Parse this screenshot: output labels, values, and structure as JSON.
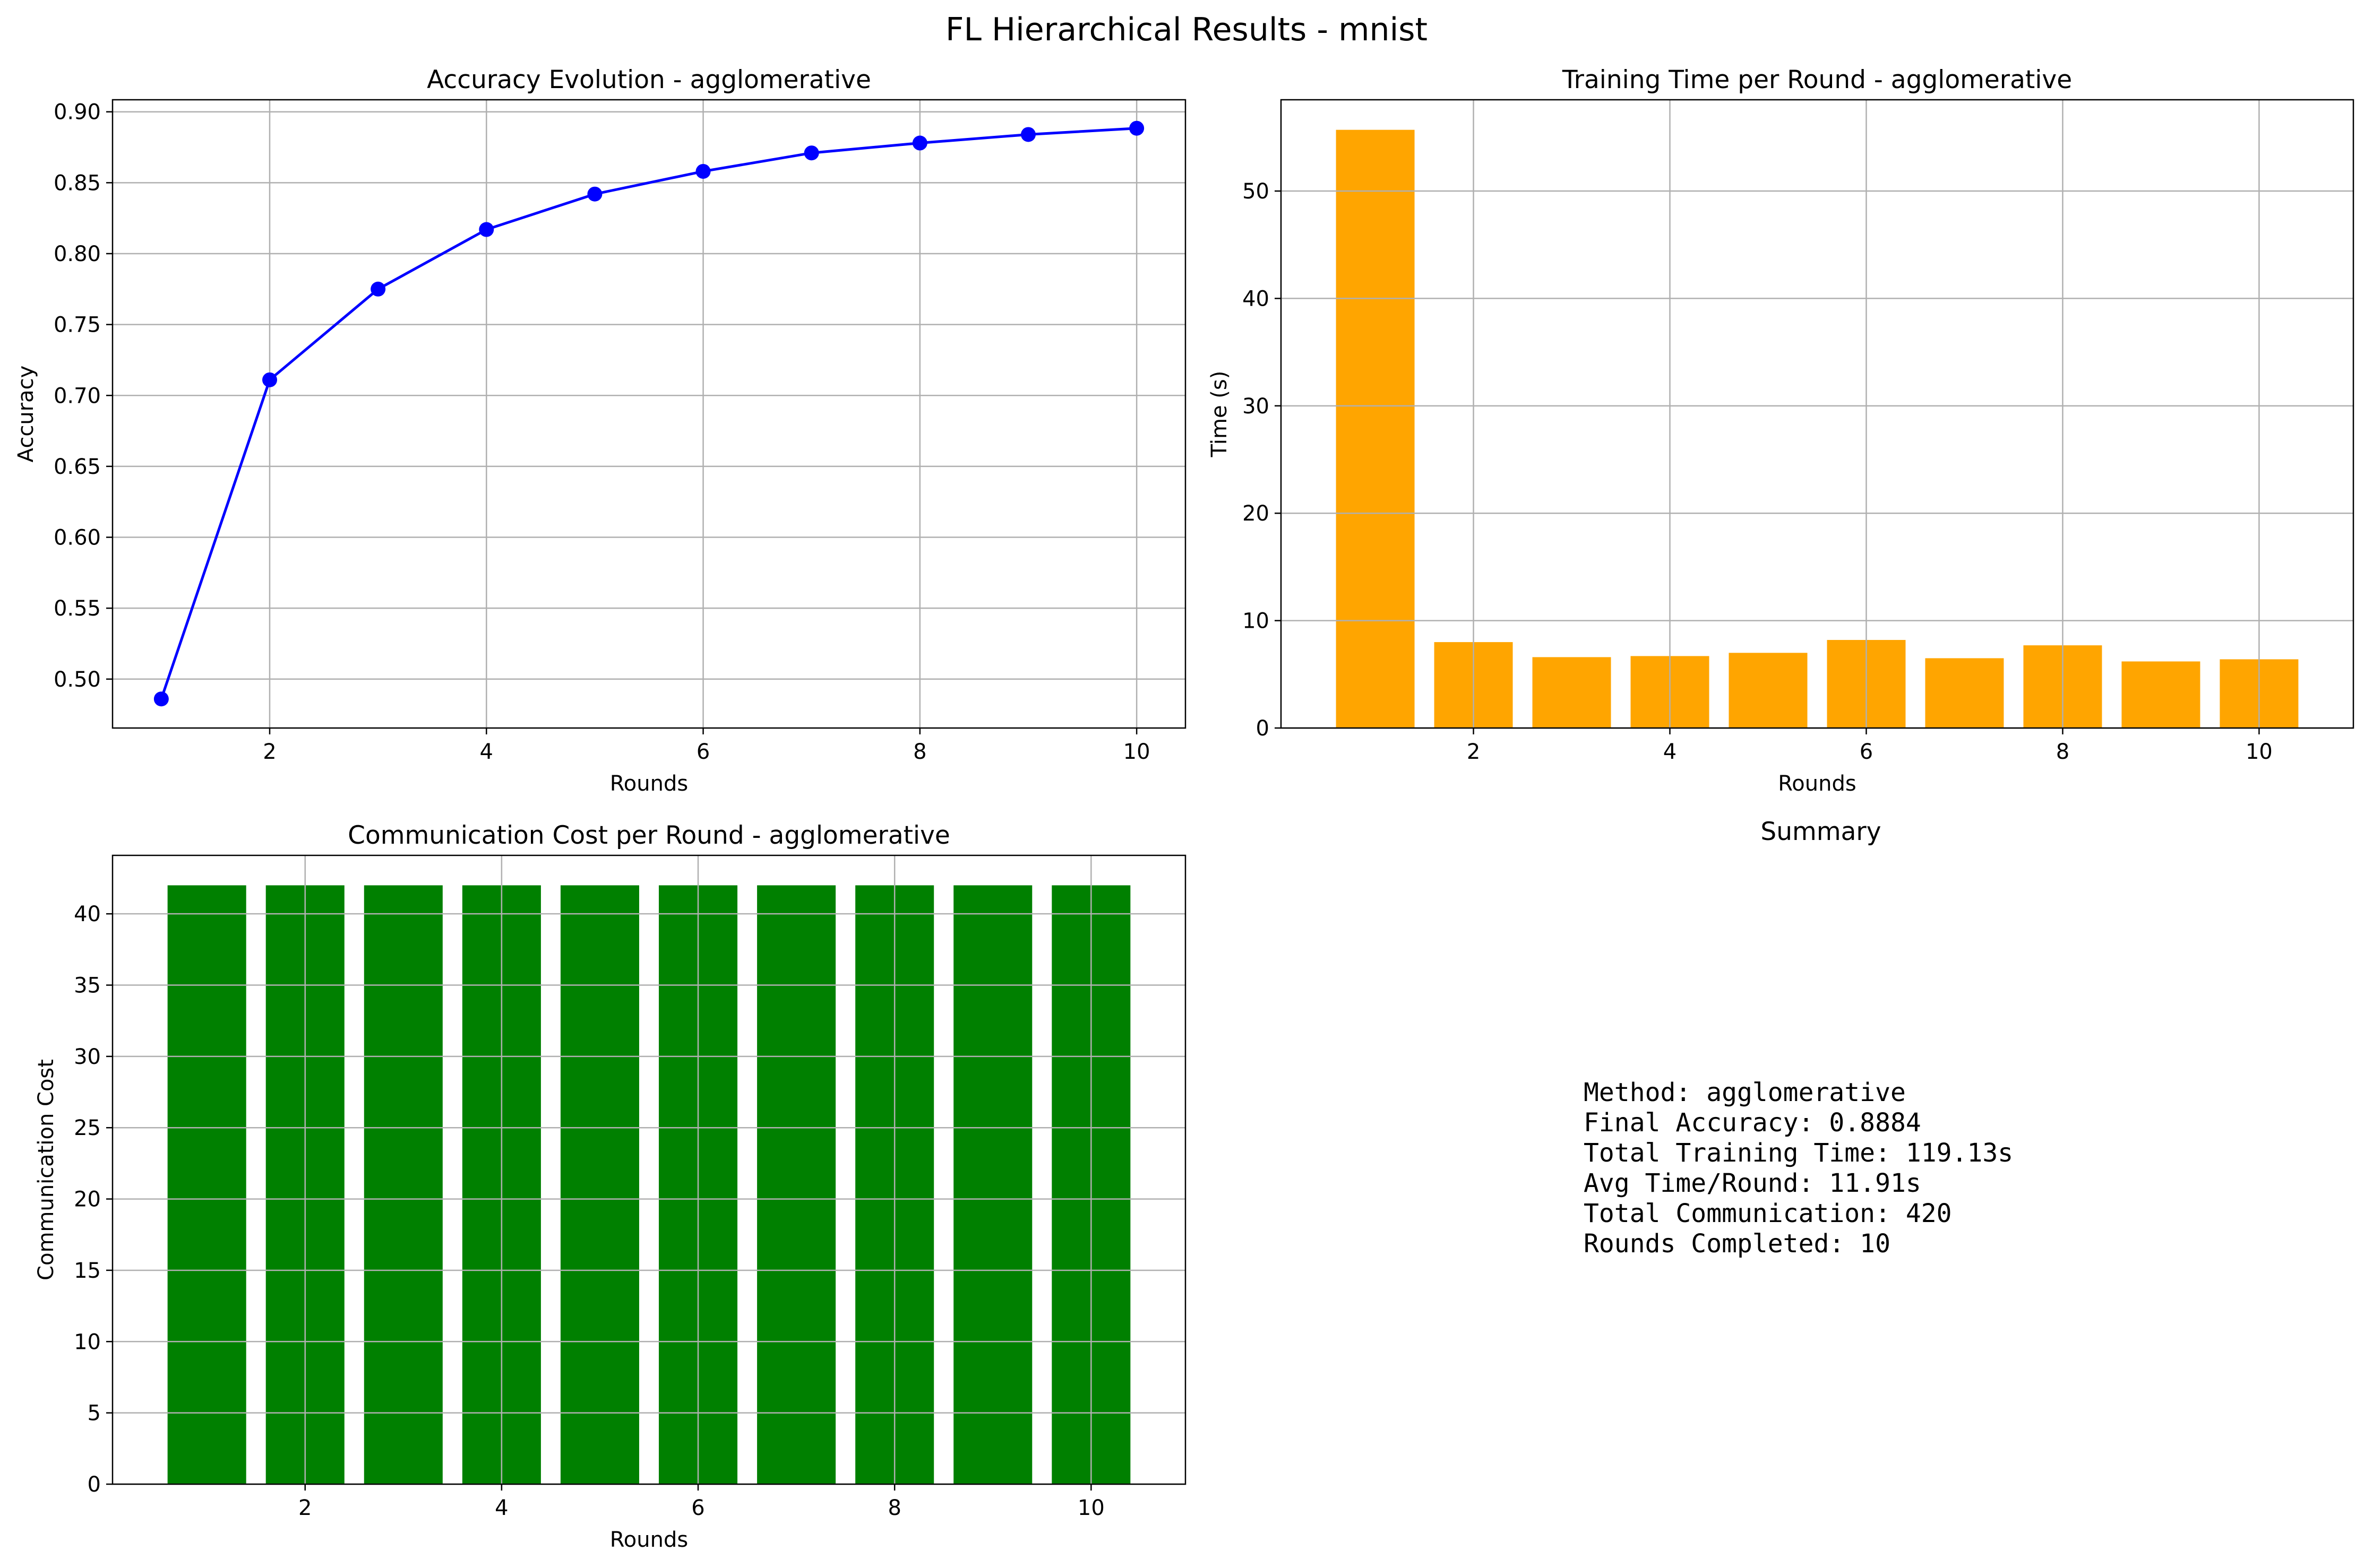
{
  "figure_title": "FL Hierarchical Results - mnist",
  "colors": {
    "accuracy_line": "#0000ff",
    "time_bars": "#ffa500",
    "comm_bars": "#008000",
    "grid": "#b0b0b0"
  },
  "chart_data": [
    {
      "type": "line",
      "title": "Accuracy Evolution - agglomerative",
      "xlabel": "Rounds",
      "ylabel": "Accuracy",
      "x": [
        1,
        2,
        3,
        4,
        5,
        6,
        7,
        8,
        9,
        10
      ],
      "series": [
        {
          "values": [
            0.486,
            0.711,
            0.775,
            0.817,
            0.842,
            0.858,
            0.871,
            0.878,
            0.884,
            0.8884
          ],
          "marker": "circle"
        }
      ],
      "xlim": [
        0.55,
        10.45
      ],
      "ylim": [
        0.4655,
        0.9085
      ],
      "xticks": [
        2,
        4,
        6,
        8,
        10
      ],
      "yticks": [
        0.5,
        0.55,
        0.6,
        0.65,
        0.7,
        0.75,
        0.8,
        0.85,
        0.9
      ],
      "ytick_labels": [
        "0.50",
        "0.55",
        "0.60",
        "0.65",
        "0.70",
        "0.75",
        "0.80",
        "0.85",
        "0.90"
      ],
      "grid": true
    },
    {
      "type": "bar",
      "title": "Training Time per Round - agglomerative",
      "xlabel": "Rounds",
      "ylabel": "Time (s)",
      "x": [
        1,
        2,
        3,
        4,
        5,
        6,
        7,
        8,
        9,
        10
      ],
      "values": [
        55.7,
        8.0,
        6.6,
        6.7,
        7.0,
        8.2,
        6.5,
        7.7,
        6.2,
        6.4
      ],
      "xlim": [
        0.04,
        10.96
      ],
      "ylim": [
        0,
        58.5
      ],
      "xticks": [
        2,
        4,
        6,
        8,
        10
      ],
      "yticks": [
        0,
        10,
        20,
        30,
        40,
        50
      ],
      "ytick_labels": [
        "0",
        "10",
        "20",
        "30",
        "40",
        "50"
      ],
      "grid": true
    },
    {
      "type": "bar",
      "title": "Communication Cost per Round - agglomerative",
      "xlabel": "Rounds",
      "ylabel": "Communication Cost",
      "x": [
        1,
        2,
        3,
        4,
        5,
        6,
        7,
        8,
        9,
        10
      ],
      "values": [
        42,
        42,
        42,
        42,
        42,
        42,
        42,
        42,
        42,
        42
      ],
      "xlim": [
        0.04,
        10.96
      ],
      "ylim": [
        0,
        44.1
      ],
      "xticks": [
        2,
        4,
        6,
        8,
        10
      ],
      "yticks": [
        0,
        5,
        10,
        15,
        20,
        25,
        30,
        35,
        40
      ],
      "ytick_labels": [
        "0",
        "5",
        "10",
        "15",
        "20",
        "25",
        "30",
        "35",
        "40"
      ],
      "grid": true
    }
  ],
  "summary": {
    "title": "Summary",
    "lines": [
      "Method: agglomerative",
      "Final Accuracy: 0.8884",
      "Total Training Time: 119.13s",
      "Avg Time/Round: 11.91s",
      "Total Communication: 420",
      "Rounds Completed: 10"
    ]
  }
}
